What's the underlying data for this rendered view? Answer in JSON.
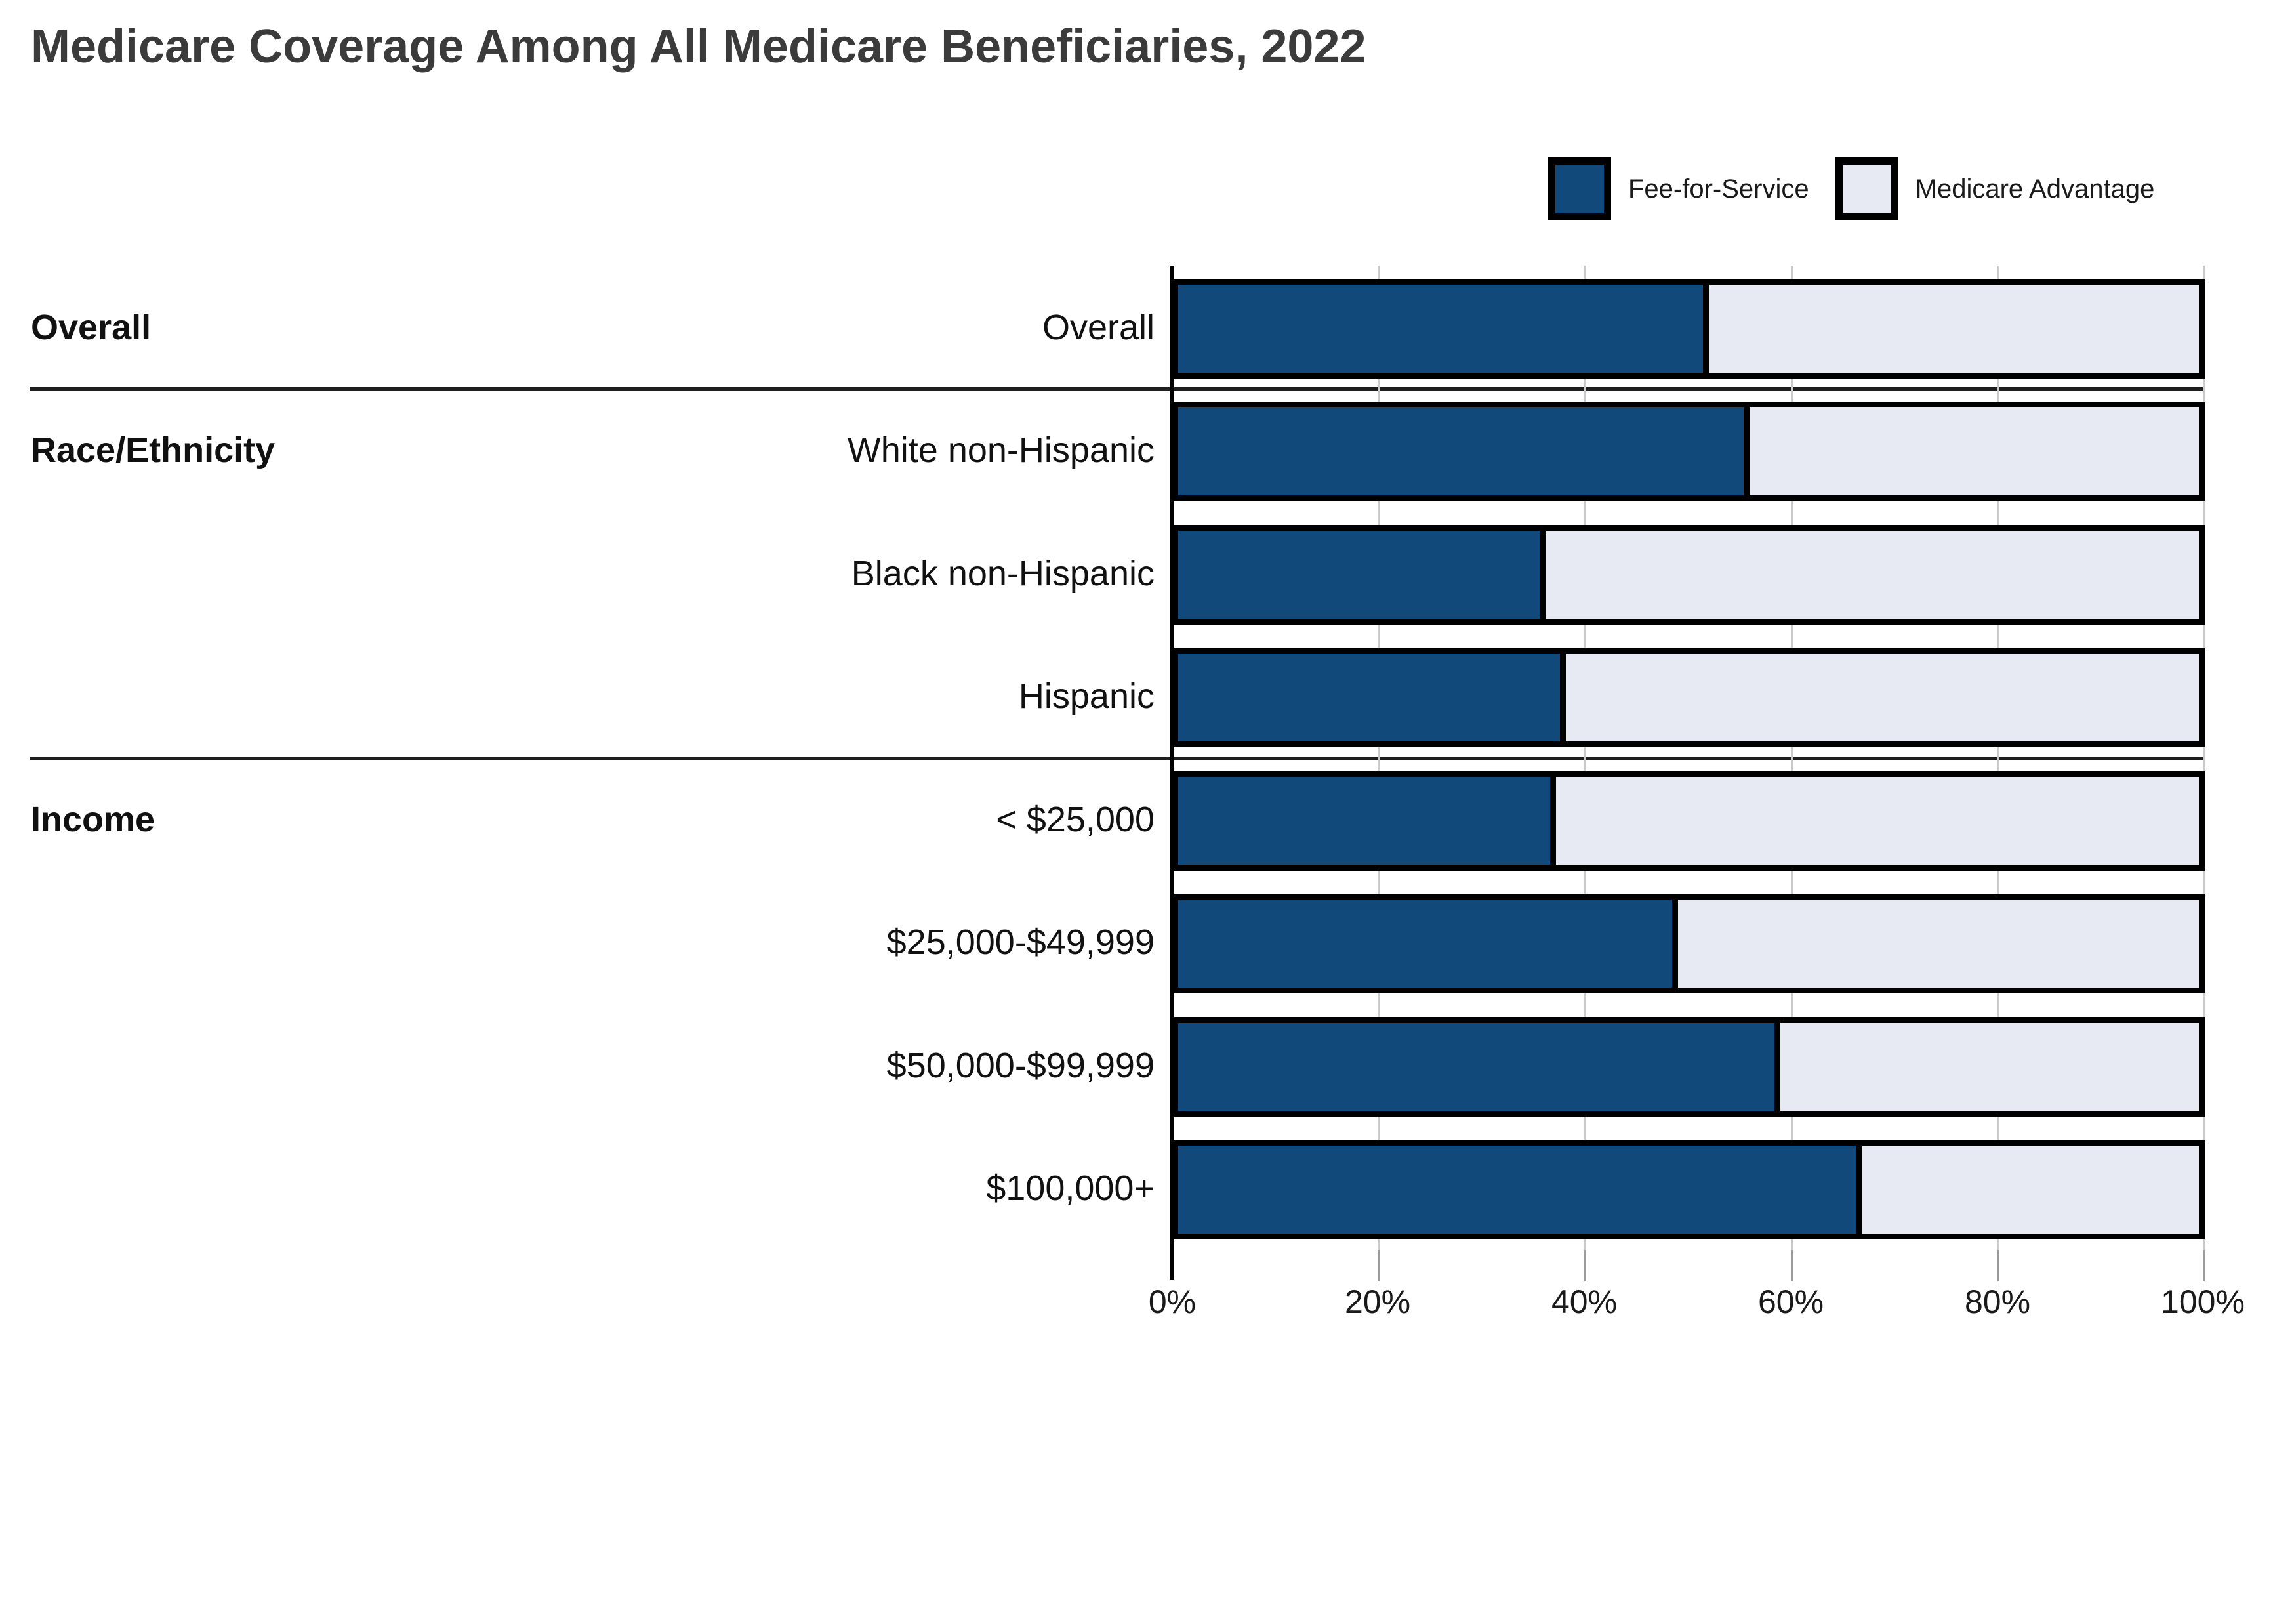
{
  "title": "Medicare Coverage Among All Medicare Beneficiaries, 2022",
  "legend": [
    {
      "label": "Fee-for-Service",
      "color": "#11497B"
    },
    {
      "label": "Medicare Advantage",
      "color": "#E7EAF2"
    }
  ],
  "colors": {
    "fee_for_service": "#11497B",
    "medicare_advantage": "#E7EAF2",
    "bar_border": "#000000",
    "gridline": "#CBCBCB",
    "title_text": "#3B3B3B"
  },
  "chart_data": {
    "type": "bar",
    "orientation": "horizontal",
    "stacked": true,
    "title": "Medicare Coverage Among All Medicare Beneficiaries, 2022",
    "xlabel": "",
    "ylabel": "",
    "xlim": [
      0,
      100
    ],
    "unit": "percent",
    "grid": true,
    "legend_position": "top-right",
    "x_ticks": [
      "0%",
      "20%",
      "40%",
      "60%",
      "80%",
      "100%"
    ],
    "sections": [
      {
        "label": "Overall",
        "categories": [
          "Overall"
        ]
      },
      {
        "label": "Race/Ethnicity",
        "categories": [
          "White non-Hispanic",
          "Black non-Hispanic",
          "Hispanic"
        ]
      },
      {
        "label": "Income",
        "categories": [
          "< $25,000",
          "$25,000-$49,999",
          "$50,000-$99,999",
          "$100,000+"
        ]
      }
    ],
    "categories": [
      "Overall",
      "White non-Hispanic",
      "Black non-Hispanic",
      "Hispanic",
      "< $25,000",
      "$25,000-$49,999",
      "$50,000-$99,999",
      "$100,000+"
    ],
    "series": [
      {
        "name": "Fee-for-Service",
        "values": [
          52,
          56,
          36,
          38,
          37,
          49,
          59,
          67
        ]
      },
      {
        "name": "Medicare Advantage",
        "values": [
          48,
          44,
          64,
          62,
          63,
          51,
          41,
          33
        ]
      }
    ]
  }
}
